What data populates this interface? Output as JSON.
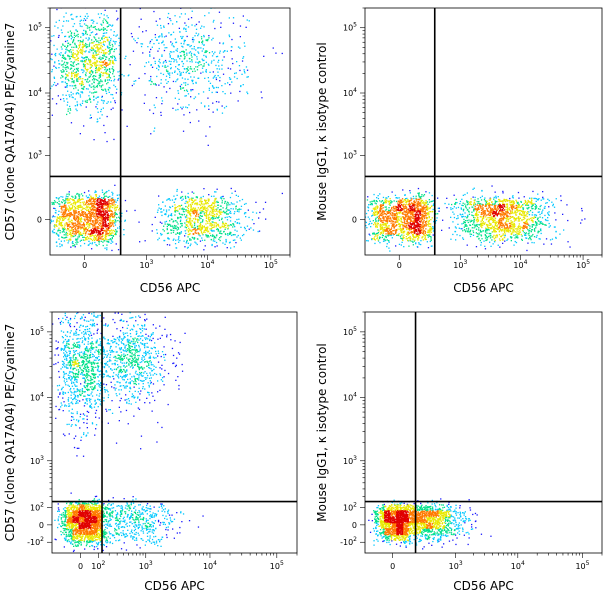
{
  "chart_data": [
    {
      "type": "scatter",
      "panel": "top-left",
      "xlabel": "CD56 APC",
      "ylabel": "CD57 (clone QA17A04) PE/Cyanine7",
      "x_scale": "biexponential",
      "y_scale": "biexponential",
      "x_ticks": [
        "0",
        "10^3",
        "10^4",
        "10^5"
      ],
      "y_ticks": [
        "0",
        "10^3",
        "10^4",
        "10^5"
      ],
      "x_range": [
        -300,
        200000
      ],
      "y_range": [
        -300,
        200000
      ],
      "quadrant_gate": {
        "x": 320,
        "y": 420
      },
      "populations": [
        {
          "x_center": 30,
          "y_center": 10,
          "x_spread": 120,
          "y_spread": 80,
          "count": 1500
        },
        {
          "x_center": 8000,
          "y_center": 10,
          "x_spread": 0.35,
          "y_spread": 80,
          "count": 900
        },
        {
          "x_center": 20,
          "y_center": 30000,
          "x_spread": 120,
          "y_spread": 0.35,
          "count": 1000
        },
        {
          "x_center": 5000,
          "y_center": 30000,
          "x_spread": 0.45,
          "y_spread": 0.4,
          "count": 600
        }
      ],
      "colormap": [
        "#1a1aff",
        "#00c8ff",
        "#00e08a",
        "#e8e800",
        "#ff7a00",
        "#e00000"
      ]
    },
    {
      "type": "scatter",
      "panel": "top-right",
      "xlabel": "CD56 APC",
      "ylabel": "Mouse IgG1, κ isotype control",
      "x_scale": "biexponential",
      "y_scale": "biexponential",
      "x_ticks": [
        "0",
        "10^3",
        "10^4",
        "10^5"
      ],
      "y_ticks": [
        "0",
        "10^3",
        "10^4",
        "10^5"
      ],
      "x_range": [
        -300,
        200000
      ],
      "y_range": [
        -300,
        200000
      ],
      "quadrant_gate": {
        "x": 320,
        "y": 420
      },
      "populations": [
        {
          "x_center": 30,
          "y_center": 10,
          "x_spread": 120,
          "y_spread": 70,
          "count": 1400
        },
        {
          "x_center": 5000,
          "y_center": 10,
          "x_spread": 0.4,
          "y_spread": 70,
          "count": 1300
        }
      ],
      "colormap": [
        "#1a1aff",
        "#00c8ff",
        "#00e08a",
        "#e8e800",
        "#ff7a00",
        "#e00000"
      ]
    },
    {
      "type": "scatter",
      "panel": "bottom-left",
      "xlabel": "CD56 APC",
      "ylabel": "CD57 (clone QA17A04) PE/Cyanine7",
      "x_scale": "biexponential",
      "y_scale": "biexponential",
      "x_ticks": [
        "0",
        "10^2",
        "10^3",
        "10^4",
        "10^5"
      ],
      "y_ticks": [
        "-10^2",
        "0",
        "10^2",
        "10^3",
        "10^4",
        "10^5"
      ],
      "x_range": [
        -200,
        200000
      ],
      "y_range": [
        -200,
        200000
      ],
      "quadrant_gate": {
        "x": 130,
        "y": 150
      },
      "populations": [
        {
          "x_center": 20,
          "y_center": 20,
          "x_spread": 60,
          "y_spread": 60,
          "count": 1600
        },
        {
          "x_center": 600,
          "y_center": 20,
          "x_spread": 0.4,
          "y_spread": 60,
          "count": 500
        },
        {
          "x_center": 10,
          "y_center": 30000,
          "x_spread": 70,
          "y_spread": 0.45,
          "count": 900
        },
        {
          "x_center": 600,
          "y_center": 40000,
          "x_spread": 0.3,
          "y_spread": 0.35,
          "count": 700
        }
      ],
      "colormap": [
        "#1a1aff",
        "#00c8ff",
        "#00e08a",
        "#e8e800",
        "#ff7a00",
        "#e00000"
      ]
    },
    {
      "type": "scatter",
      "panel": "bottom-right",
      "xlabel": "CD56 APC",
      "ylabel": "Mouse IgG1, κ isotype control",
      "x_scale": "biexponential",
      "y_scale": "biexponential",
      "x_ticks": [
        "0",
        "10^3",
        "10^4",
        "10^5"
      ],
      "y_ticks": [
        "-10^2",
        "0",
        "10^2",
        "10^3",
        "10^4",
        "10^5"
      ],
      "x_range": [
        -200,
        200000
      ],
      "y_range": [
        -200,
        200000
      ],
      "quadrant_gate": {
        "x": 150,
        "y": 150
      },
      "populations": [
        {
          "x_center": 10,
          "y_center": 20,
          "x_spread": 50,
          "y_spread": 50,
          "count": 1300
        },
        {
          "x_center": 300,
          "y_center": 20,
          "x_spread": 0.35,
          "y_spread": 50,
          "count": 1100
        }
      ],
      "colormap": [
        "#1a1aff",
        "#00c8ff",
        "#00e08a",
        "#e8e800",
        "#ff7a00",
        "#e00000"
      ]
    }
  ]
}
